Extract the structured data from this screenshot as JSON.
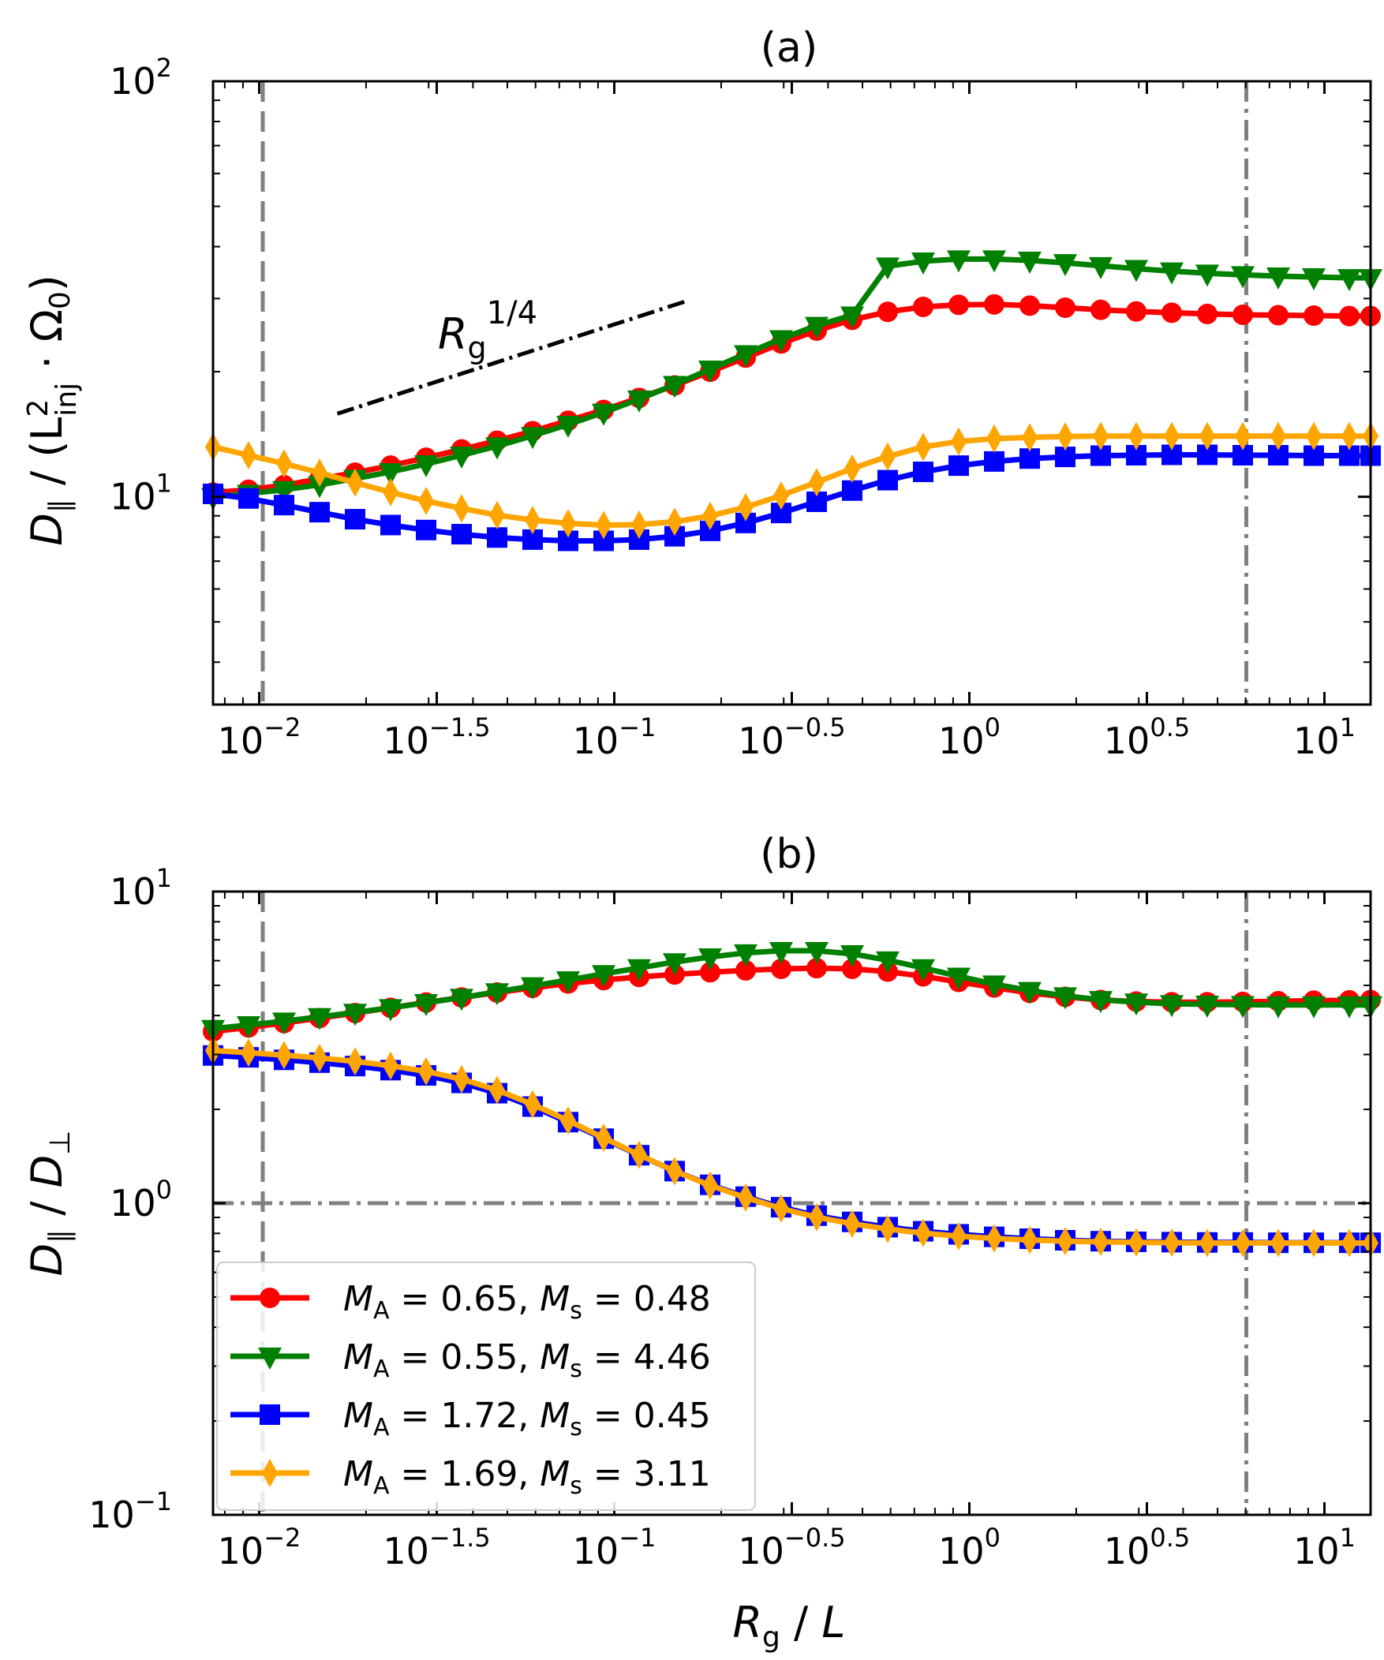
{
  "chart_data": [
    {
      "type": "line",
      "title": "(a)",
      "xscale": "log",
      "yscale": "log",
      "xlim_log10": [
        -2.13,
        1.13
      ],
      "ylim_log10": [
        0.5,
        2.0
      ],
      "xticks": [
        {
          "base": "10",
          "exp": "−2",
          "log10": -2.0
        },
        {
          "base": "10",
          "exp": "−1.5",
          "log10": -1.5
        },
        {
          "base": "10",
          "exp": "−1",
          "log10": -1.0
        },
        {
          "base": "10",
          "exp": "−0.5",
          "log10": -0.5
        },
        {
          "base": "10",
          "exp": "0",
          "log10": 0.0
        },
        {
          "base": "10",
          "exp": "0.5",
          "log10": 0.5
        },
        {
          "base": "10",
          "exp": "1",
          "log10": 1.0
        }
      ],
      "yticks": [
        {
          "base": "10",
          "exp": "1",
          "log10": 1.0
        },
        {
          "base": "10",
          "exp": "2",
          "log10": 2.0
        }
      ],
      "ylabel": {
        "main": "D",
        "sub": "∥",
        "rest": " / (L",
        "sup2": "2",
        "sub2": "inj",
        "tail": " · Ω",
        "sub3": "0",
        "close": ")"
      },
      "vlines_log10": [
        {
          "x": -1.99,
          "style": "dashed"
        },
        {
          "x": 0.78,
          "style": "dashdot"
        }
      ],
      "annotation": {
        "base": "R",
        "sub": "g",
        "sup": "1/4",
        "line_log10": {
          "x0": -1.78,
          "y0": 1.2,
          "x1": -0.8,
          "y1": 1.47
        }
      },
      "x_log10": [
        -2.13,
        -2.03,
        -1.93,
        -1.83,
        -1.73,
        -1.63,
        -1.53,
        -1.43,
        -1.33,
        -1.23,
        -1.13,
        -1.03,
        -0.93,
        -0.83,
        -0.73,
        -0.63,
        -0.53,
        -0.43,
        -0.33,
        -0.23,
        -0.13,
        -0.03,
        0.07,
        0.17,
        0.27,
        0.37,
        0.47,
        0.57,
        0.67,
        0.77,
        0.87,
        0.97,
        1.07,
        1.13
      ],
      "series": [
        {
          "name": "M_A = 0.65, M_s = 0.48",
          "color": "#ff0000",
          "marker": "circle",
          "y_log10": [
            1.01,
            1.017,
            1.028,
            1.043,
            1.058,
            1.075,
            1.094,
            1.114,
            1.135,
            1.158,
            1.183,
            1.209,
            1.238,
            1.268,
            1.301,
            1.335,
            1.369,
            1.4,
            1.426,
            1.445,
            1.457,
            1.462,
            1.463,
            1.46,
            1.455,
            1.45,
            1.446,
            1.443,
            1.44,
            1.438,
            1.437,
            1.436,
            1.435,
            1.435
          ]
        },
        {
          "name": "M_A = 0.55, M_s = 4.46",
          "color": "#008000",
          "marker": "triangle-down",
          "y_log10": [
            1.0,
            1.008,
            1.017,
            1.029,
            1.044,
            1.06,
            1.079,
            1.1,
            1.122,
            1.147,
            1.174,
            1.203,
            1.235,
            1.27,
            1.307,
            1.344,
            1.38,
            1.412,
            1.437,
            1.555,
            1.567,
            1.572,
            1.572,
            1.569,
            1.563,
            1.556,
            1.549,
            1.543,
            1.538,
            1.534,
            1.531,
            1.529,
            1.527,
            1.527
          ]
        },
        {
          "name": "M_A = 1.72, M_s = 0.45",
          "color": "#0000ff",
          "marker": "square",
          "y_log10": [
            1.007,
            0.996,
            0.98,
            0.963,
            0.946,
            0.932,
            0.92,
            0.91,
            0.902,
            0.897,
            0.894,
            0.894,
            0.897,
            0.905,
            0.918,
            0.937,
            0.961,
            0.988,
            1.015,
            1.04,
            1.06,
            1.075,
            1.085,
            1.092,
            1.096,
            1.099,
            1.1,
            1.101,
            1.101,
            1.1,
            1.1,
            1.099,
            1.099,
            1.099
          ]
        },
        {
          "name": "M_A = 1.69, M_s = 3.11",
          "color": "#ffa500",
          "marker": "diamond",
          "y_log10": [
            1.12,
            1.1,
            1.08,
            1.058,
            1.034,
            1.011,
            0.99,
            0.972,
            0.956,
            0.944,
            0.936,
            0.932,
            0.933,
            0.94,
            0.954,
            0.975,
            1.003,
            1.035,
            1.068,
            1.097,
            1.12,
            1.133,
            1.14,
            1.143,
            1.145,
            1.146,
            1.146,
            1.146,
            1.146,
            1.146,
            1.146,
            1.146,
            1.146,
            1.146
          ]
        }
      ]
    },
    {
      "type": "line",
      "title": "(b)",
      "xscale": "log",
      "yscale": "log",
      "xlim_log10": [
        -2.13,
        1.13
      ],
      "ylim_log10": [
        -1.0,
        1.0
      ],
      "xlabel": {
        "main": "R",
        "sub": "g",
        "rest": " / ",
        "tail": "L"
      },
      "ylabel": {
        "main": "D",
        "sub": "∥",
        "rest": " / ",
        "tail": "D",
        "sub2": "⊥"
      },
      "xticks": [
        {
          "base": "10",
          "exp": "−2",
          "log10": -2.0
        },
        {
          "base": "10",
          "exp": "−1.5",
          "log10": -1.5
        },
        {
          "base": "10",
          "exp": "−1",
          "log10": -1.0
        },
        {
          "base": "10",
          "exp": "−0.5",
          "log10": -0.5
        },
        {
          "base": "10",
          "exp": "0",
          "log10": 0.0
        },
        {
          "base": "10",
          "exp": "0.5",
          "log10": 0.5
        },
        {
          "base": "10",
          "exp": "1",
          "log10": 1.0
        }
      ],
      "yticks": [
        {
          "base": "10",
          "exp": "−1",
          "log10": -1.0
        },
        {
          "base": "10",
          "exp": "0",
          "log10": 0.0
        },
        {
          "base": "10",
          "exp": "1",
          "log10": 1.0
        }
      ],
      "vlines_log10": [
        {
          "x": -1.99,
          "style": "dashed"
        },
        {
          "x": 0.78,
          "style": "dashdot"
        }
      ],
      "hlines_log10": [
        {
          "y": 0.0,
          "style": "dashdot"
        }
      ],
      "x_log10": [
        -2.13,
        -2.03,
        -1.93,
        -1.83,
        -1.73,
        -1.63,
        -1.53,
        -1.43,
        -1.33,
        -1.23,
        -1.13,
        -1.03,
        -0.93,
        -0.83,
        -0.73,
        -0.63,
        -0.53,
        -0.43,
        -0.33,
        -0.23,
        -0.13,
        -0.03,
        0.07,
        0.17,
        0.27,
        0.37,
        0.47,
        0.57,
        0.67,
        0.77,
        0.87,
        0.97,
        1.07,
        1.13
      ],
      "series": [
        {
          "name": "M_A = 0.65, M_s = 0.48",
          "color": "#ff0000",
          "marker": "circle",
          "y_log10": [
            0.551,
            0.564,
            0.578,
            0.594,
            0.61,
            0.627,
            0.644,
            0.66,
            0.676,
            0.691,
            0.705,
            0.716,
            0.726,
            0.734,
            0.741,
            0.747,
            0.752,
            0.754,
            0.752,
            0.743,
            0.728,
            0.71,
            0.692,
            0.675,
            0.662,
            0.652,
            0.647,
            0.645,
            0.645,
            0.646,
            0.648,
            0.65,
            0.651,
            0.652
          ]
        },
        {
          "name": "M_A = 0.55, M_s = 4.46",
          "color": "#008000",
          "marker": "triangle-down",
          "y_log10": [
            0.56,
            0.572,
            0.584,
            0.598,
            0.612,
            0.627,
            0.643,
            0.66,
            0.678,
            0.697,
            0.716,
            0.736,
            0.755,
            0.774,
            0.79,
            0.803,
            0.81,
            0.81,
            0.8,
            0.78,
            0.755,
            0.728,
            0.703,
            0.682,
            0.665,
            0.653,
            0.645,
            0.64,
            0.638,
            0.637,
            0.636,
            0.636,
            0.636,
            0.636
          ]
        },
        {
          "name": "M_A = 1.72, M_s = 0.45",
          "color": "#0000ff",
          "marker": "square",
          "y_log10": [
            0.474,
            0.468,
            0.46,
            0.451,
            0.44,
            0.427,
            0.41,
            0.386,
            0.353,
            0.31,
            0.26,
            0.207,
            0.154,
            0.103,
            0.059,
            0.021,
            -0.013,
            -0.04,
            -0.06,
            -0.077,
            -0.09,
            -0.1,
            -0.108,
            -0.114,
            -0.119,
            -0.122,
            -0.124,
            -0.125,
            -0.126,
            -0.126,
            -0.127,
            -0.127,
            -0.127,
            -0.127
          ]
        },
        {
          "name": "M_A = 1.69, M_s = 3.11",
          "color": "#ffa500",
          "marker": "diamond",
          "y_log10": [
            0.49,
            0.483,
            0.475,
            0.466,
            0.455,
            0.441,
            0.423,
            0.398,
            0.363,
            0.317,
            0.265,
            0.21,
            0.155,
            0.103,
            0.057,
            0.018,
            -0.017,
            -0.045,
            -0.066,
            -0.083,
            -0.096,
            -0.106,
            -0.113,
            -0.118,
            -0.122,
            -0.124,
            -0.126,
            -0.127,
            -0.128,
            -0.128,
            -0.128,
            -0.128,
            -0.128,
            -0.128
          ]
        }
      ],
      "legend": {
        "placement": "lower-left",
        "entries": [
          {
            "color": "#ff0000",
            "marker": "circle",
            "ma_label": "M",
            "ma_sub": "A",
            "ma_val": " = 0.65, ",
            "ms_label": "M",
            "ms_sub": "s",
            "ms_val": " = 0.48"
          },
          {
            "color": "#008000",
            "marker": "triangle-down",
            "ma_label": "M",
            "ma_sub": "A",
            "ma_val": " = 0.55, ",
            "ms_label": "M",
            "ms_sub": "s",
            "ms_val": " = 4.46"
          },
          {
            "color": "#0000ff",
            "marker": "square",
            "ma_label": "M",
            "ma_sub": "A",
            "ma_val": " = 1.72, ",
            "ms_label": "M",
            "ms_sub": "s",
            "ms_val": " = 0.45"
          },
          {
            "color": "#ffa500",
            "marker": "diamond",
            "ma_label": "M",
            "ma_sub": "A",
            "ma_val": " = 1.69, ",
            "ms_label": "M",
            "ms_sub": "s",
            "ms_val": " = 3.11"
          }
        ]
      }
    }
  ]
}
